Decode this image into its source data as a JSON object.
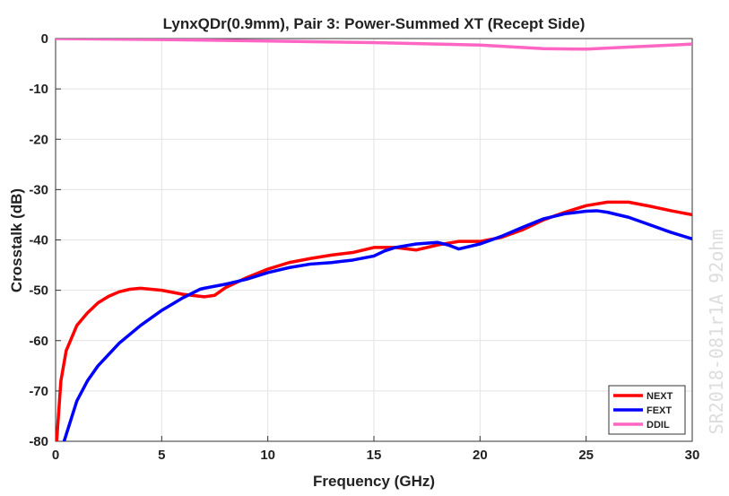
{
  "chart_data": {
    "type": "line",
    "title": "LynxQDr(0.9mm), Pair 3: Power-Summed XT (Recept Side)",
    "xlabel": "Frequency (GHz)",
    "ylabel": "Crosstalk (dB)",
    "annotation": "SR2018-081r1A 92ohm",
    "xlim": [
      0,
      30
    ],
    "xticks": [
      0,
      5,
      10,
      15,
      20,
      25,
      30
    ],
    "ylim": [
      -80,
      0
    ],
    "yticks": [
      -80,
      -70,
      -60,
      -50,
      -40,
      -30,
      -20,
      -10,
      0
    ],
    "grid": true,
    "legend": "lower right",
    "series": [
      {
        "name": "NEXT",
        "color": "#ff0000",
        "x": [
          0.05,
          0.25,
          0.5,
          1,
          1.5,
          2,
          2.5,
          3,
          3.5,
          4,
          5,
          6,
          7,
          7.5,
          8,
          9,
          10,
          11,
          12,
          13,
          14,
          15,
          16,
          17,
          18,
          19,
          20,
          21,
          22,
          23,
          24,
          25,
          26,
          27,
          28,
          29,
          30
        ],
        "values": [
          -80,
          -68,
          -62,
          -57,
          -54.5,
          -52.5,
          -51.2,
          -50.3,
          -49.8,
          -49.6,
          -50,
          -50.8,
          -51.3,
          -51,
          -49.5,
          -47.5,
          -45.8,
          -44.5,
          -43.7,
          -43,
          -42.5,
          -41.5,
          -41.5,
          -42,
          -41,
          -40.3,
          -40.3,
          -39.5,
          -38,
          -36,
          -34.5,
          -33.2,
          -32.5,
          -32.5,
          -33.3,
          -34.2,
          -35
        ]
      },
      {
        "name": "FEXT",
        "color": "#0000ff",
        "x": [
          0.4,
          1,
          1.5,
          2,
          3,
          4,
          5,
          6,
          6.8,
          7,
          8,
          9,
          10,
          11,
          12,
          13,
          14,
          15,
          15.5,
          16,
          17,
          18,
          18.5,
          19,
          20,
          21,
          22,
          23,
          24,
          25,
          25.5,
          26,
          27,
          28,
          29,
          30
        ],
        "values": [
          -80,
          -72,
          -68,
          -65,
          -60.5,
          -57,
          -54,
          -51.5,
          -49.8,
          -49.6,
          -48.8,
          -47.8,
          -46.5,
          -45.5,
          -44.8,
          -44.5,
          -44,
          -43.2,
          -42.2,
          -41.5,
          -40.8,
          -40.5,
          -41,
          -41.8,
          -40.8,
          -39.3,
          -37.5,
          -35.8,
          -34.8,
          -34.3,
          -34.2,
          -34.5,
          -35.5,
          -37,
          -38.5,
          -39.8
        ]
      },
      {
        "name": "DDIL",
        "color": "#ff66c4",
        "x": [
          0,
          5,
          10,
          15,
          20,
          23,
          25,
          28,
          30
        ],
        "values": [
          0,
          -0.2,
          -0.5,
          -0.8,
          -1.3,
          -2,
          -2.1,
          -1.5,
          -1.1
        ]
      }
    ]
  }
}
